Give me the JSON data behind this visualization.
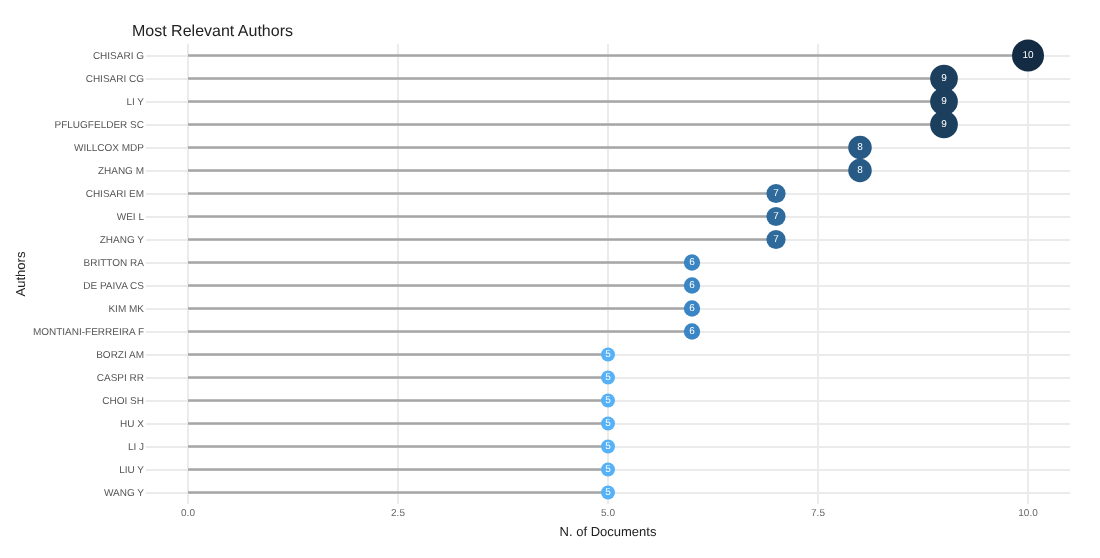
{
  "chart_data": {
    "type": "lollipop",
    "title": "Most Relevant Authors",
    "xlabel": "N. of Documents",
    "ylabel": "Authors",
    "orientation": "horizontal",
    "categories": [
      "CHISARI G",
      "CHISARI CG",
      "LI Y",
      "PFLUGFELDER SC",
      "WILLCOX MDP",
      "ZHANG M",
      "CHISARI EM",
      "WEI L",
      "ZHANG Y",
      "BRITTON RA",
      "DE PAIVA CS",
      "KIM MK",
      "MONTIANI-FERREIRA F",
      "BORZI AM",
      "CASPI RR",
      "CHOI SH",
      "HU X",
      "LI J",
      "LIU Y",
      "WANG Y"
    ],
    "values": [
      10,
      9,
      9,
      9,
      8,
      8,
      7,
      7,
      7,
      6,
      6,
      6,
      6,
      5,
      5,
      5,
      5,
      5,
      5,
      5
    ],
    "colors": [
      "#132b43",
      "#1d3f5e",
      "#1d3f5e",
      "#1d3f5e",
      "#285a86",
      "#285a86",
      "#2f6a9c",
      "#2f6a9c",
      "#2f6a9c",
      "#3a85c3",
      "#3a85c3",
      "#3a85c3",
      "#3a85c3",
      "#56b1f7",
      "#56b1f7",
      "#56b1f7",
      "#56b1f7",
      "#56b1f7",
      "#56b1f7",
      "#56b1f7"
    ],
    "sizes": [
      1,
      0.75,
      0.75,
      0.75,
      0.54,
      0.54,
      0.36,
      0.36,
      0.36,
      0.26,
      0.26,
      0.26,
      0.26,
      0.19,
      0.19,
      0.19,
      0.19,
      0.19,
      0.19,
      0.19
    ],
    "xlim": [
      -0.5,
      10.5
    ],
    "xticks": [
      {
        "value": 0,
        "label": "0.0"
      },
      {
        "value": 2.5,
        "label": "2.5"
      },
      {
        "value": 5,
        "label": "5.0"
      },
      {
        "value": 7.5,
        "label": "7.5"
      },
      {
        "value": 10,
        "label": "10.0"
      }
    ],
    "grid": true,
    "data_labels": true
  }
}
